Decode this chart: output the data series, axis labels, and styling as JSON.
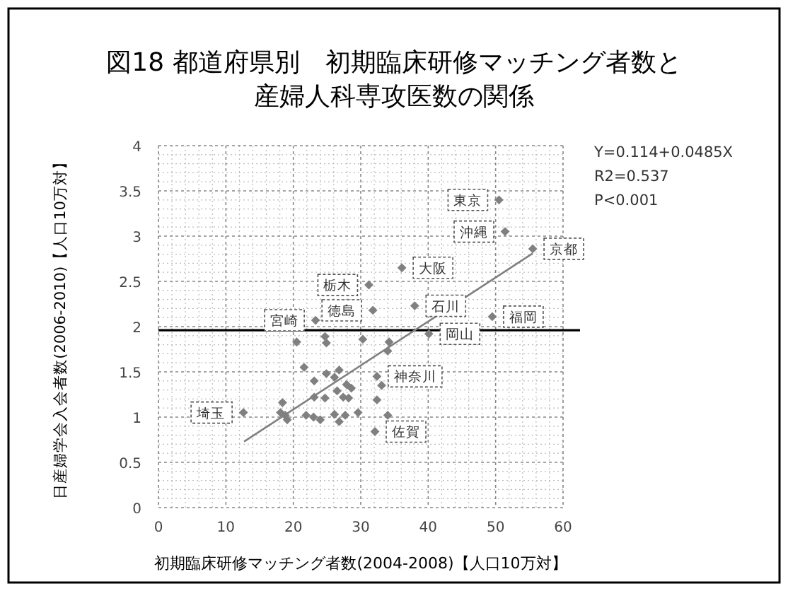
{
  "chart_data": {
    "type": "scatter",
    "title": "図18 都道府県別　初期臨床研修マッチング者数と産婦人科専攻医数の関係",
    "xlabel": "初期臨床研修マッチング者数(2004-2008)【人口10万対】",
    "ylabel": "日産婦学会入会者数(2006-2010)【人口10万対】",
    "xlim": [
      0,
      60
    ],
    "xticks": [
      0,
      10,
      20,
      30,
      40,
      50,
      60
    ],
    "ylim": [
      0,
      4
    ],
    "yticks": [
      0,
      0.5,
      1,
      1.5,
      2,
      2.5,
      3,
      3.5,
      4
    ],
    "grid": true,
    "series": [
      {
        "marker": "diamond",
        "color": "#808080",
        "x": [
          12.6,
          36.1,
          31.2,
          31.8,
          23.3,
          38.0,
          20.5,
          24.7,
          24.9,
          30.3,
          34.2,
          34.0,
          21.6,
          23.1,
          24.9,
          26.8,
          26.1,
          32.4,
          33.1,
          23.1,
          24.7,
          26.5,
          27.9,
          28.6,
          27.4,
          28.2,
          32.4,
          18.4,
          18.1,
          18.8,
          19.1,
          21.9,
          23.0,
          24.0,
          26.1,
          27.7,
          26.8,
          29.6,
          34.0,
          32.1,
          50.5,
          51.4,
          55.5,
          49.5,
          40.1
        ],
        "values": [
          1.05,
          2.65,
          2.46,
          2.18,
          2.07,
          2.23,
          1.83,
          1.89,
          1.82,
          1.86,
          1.83,
          1.73,
          1.55,
          1.4,
          1.48,
          1.52,
          1.44,
          1.45,
          1.35,
          1.22,
          1.21,
          1.29,
          1.36,
          1.32,
          1.22,
          1.21,
          1.19,
          1.16,
          1.05,
          1.02,
          0.97,
          1.02,
          1.0,
          0.97,
          1.03,
          1.02,
          0.95,
          1.05,
          1.02,
          0.84,
          3.4,
          3.05,
          2.86,
          2.11,
          1.92
        ]
      },
      {
        "type": "line",
        "color": "#808080",
        "x": [
          12.7,
          55.5
        ],
        "values": [
          0.73,
          2.81
        ]
      }
    ],
    "ref_lines": [
      {
        "axis": "y",
        "value": 1.96,
        "color": "#000000"
      }
    ],
    "annotations": [
      {
        "text": "埼玉",
        "x": 12.6,
        "y": 1.05
      },
      {
        "text": "宮崎",
        "x": 23.3,
        "y": 2.07
      },
      {
        "text": "栃木",
        "x": 31.2,
        "y": 2.46
      },
      {
        "text": "徳島",
        "x": 31.8,
        "y": 2.18
      },
      {
        "text": "大阪",
        "x": 36.1,
        "y": 2.65
      },
      {
        "text": "石川",
        "x": 38.0,
        "y": 2.23
      },
      {
        "text": "東京",
        "x": 50.5,
        "y": 3.4
      },
      {
        "text": "沖縄",
        "x": 51.4,
        "y": 3.05
      },
      {
        "text": "京都",
        "x": 55.5,
        "y": 2.86
      },
      {
        "text": "福岡",
        "x": 49.5,
        "y": 2.11
      },
      {
        "text": "岡山",
        "x": 40.1,
        "y": 1.92
      },
      {
        "text": "神奈川",
        "x": 32.4,
        "y": 1.45
      },
      {
        "text": "佐賀",
        "x": 32.1,
        "y": 0.84
      },
      "Y=0.114+0.0485X",
      "R2=0.537",
      "P<0.001"
    ]
  }
}
